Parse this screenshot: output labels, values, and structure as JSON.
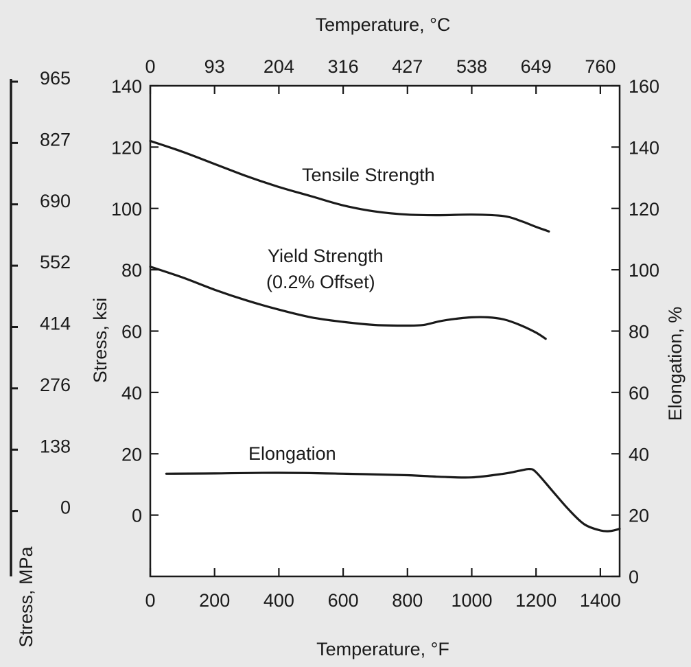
{
  "chart_data": {
    "type": "line",
    "title": "",
    "x_axis": {
      "label": "Temperature, °F",
      "range": [
        0,
        1460
      ],
      "ticks": [
        "0",
        "200",
        "400",
        "600",
        "800",
        "1000",
        "1200",
        "1400"
      ],
      "tick_values": [
        0,
        200,
        400,
        600,
        800,
        1000,
        1200,
        1400
      ]
    },
    "x2_axis": {
      "label": "Temperature, °C",
      "ticks": [
        "0",
        "93",
        "204",
        "316",
        "427",
        "538",
        "649",
        "760"
      ],
      "tick_values_in_F": [
        0,
        200,
        400,
        600,
        800,
        1000,
        1200,
        1400
      ]
    },
    "y_left_axis": {
      "label": "Stress, ksi",
      "range": [
        -20,
        140
      ],
      "ticks": [
        "140",
        "120",
        "100",
        "80",
        "60",
        "40",
        "20",
        "0"
      ],
      "tick_values": [
        140,
        120,
        100,
        80,
        60,
        40,
        20,
        0
      ]
    },
    "y_mpa_axis": {
      "label": "Stress, MPa",
      "ticks": [
        "965",
        "827",
        "690",
        "552",
        "414",
        "276",
        "138",
        "0"
      ],
      "tick_values_in_ksi": [
        140,
        120,
        100,
        80,
        60,
        40,
        20,
        0
      ]
    },
    "y_right_axis": {
      "label": "Elongation, %",
      "range": [
        0,
        160
      ],
      "ticks": [
        "160",
        "140",
        "120",
        "100",
        "80",
        "60",
        "40",
        "20",
        "0"
      ],
      "tick_values": [
        160,
        140,
        120,
        100,
        80,
        60,
        40,
        20,
        0
      ]
    },
    "series": [
      {
        "name": "Tensile Strength",
        "axis": "left",
        "x": [
          0,
          100,
          200,
          300,
          400,
          500,
          600,
          700,
          800,
          900,
          1000,
          1100,
          1150,
          1200,
          1240
        ],
        "y": [
          122,
          118.5,
          114.5,
          110.5,
          107,
          104,
          101,
          99,
          98,
          97.8,
          98,
          97.5,
          96,
          94,
          92.5
        ]
      },
      {
        "name": "Yield Strength (0.2% Offset)",
        "axis": "left",
        "x": [
          0,
          100,
          200,
          300,
          400,
          500,
          600,
          700,
          800,
          850,
          900,
          950,
          1000,
          1050,
          1100,
          1150,
          1200,
          1230
        ],
        "y": [
          81,
          77.5,
          73.5,
          70,
          67,
          64.5,
          63,
          62,
          61.8,
          62,
          63.2,
          64,
          64.5,
          64.5,
          63.8,
          62,
          59.5,
          57.5
        ]
      },
      {
        "name": "Elongation",
        "axis": "right",
        "x": [
          50,
          200,
          400,
          600,
          800,
          900,
          1000,
          1100,
          1150,
          1180,
          1200,
          1250,
          1300,
          1350,
          1400,
          1430,
          1460
        ],
        "y": [
          33.5,
          33.6,
          33.8,
          33.5,
          33,
          32.5,
          32.3,
          33.5,
          34.5,
          35,
          34,
          28,
          22,
          17,
          15,
          14.8,
          15.5
        ]
      }
    ],
    "labels": {
      "tensile": "Tensile Strength",
      "yield_line1": "Yield Strength",
      "yield_line2": "(0.2% Offset)",
      "elongation": "Elongation"
    },
    "grid": false,
    "legend": "none"
  }
}
